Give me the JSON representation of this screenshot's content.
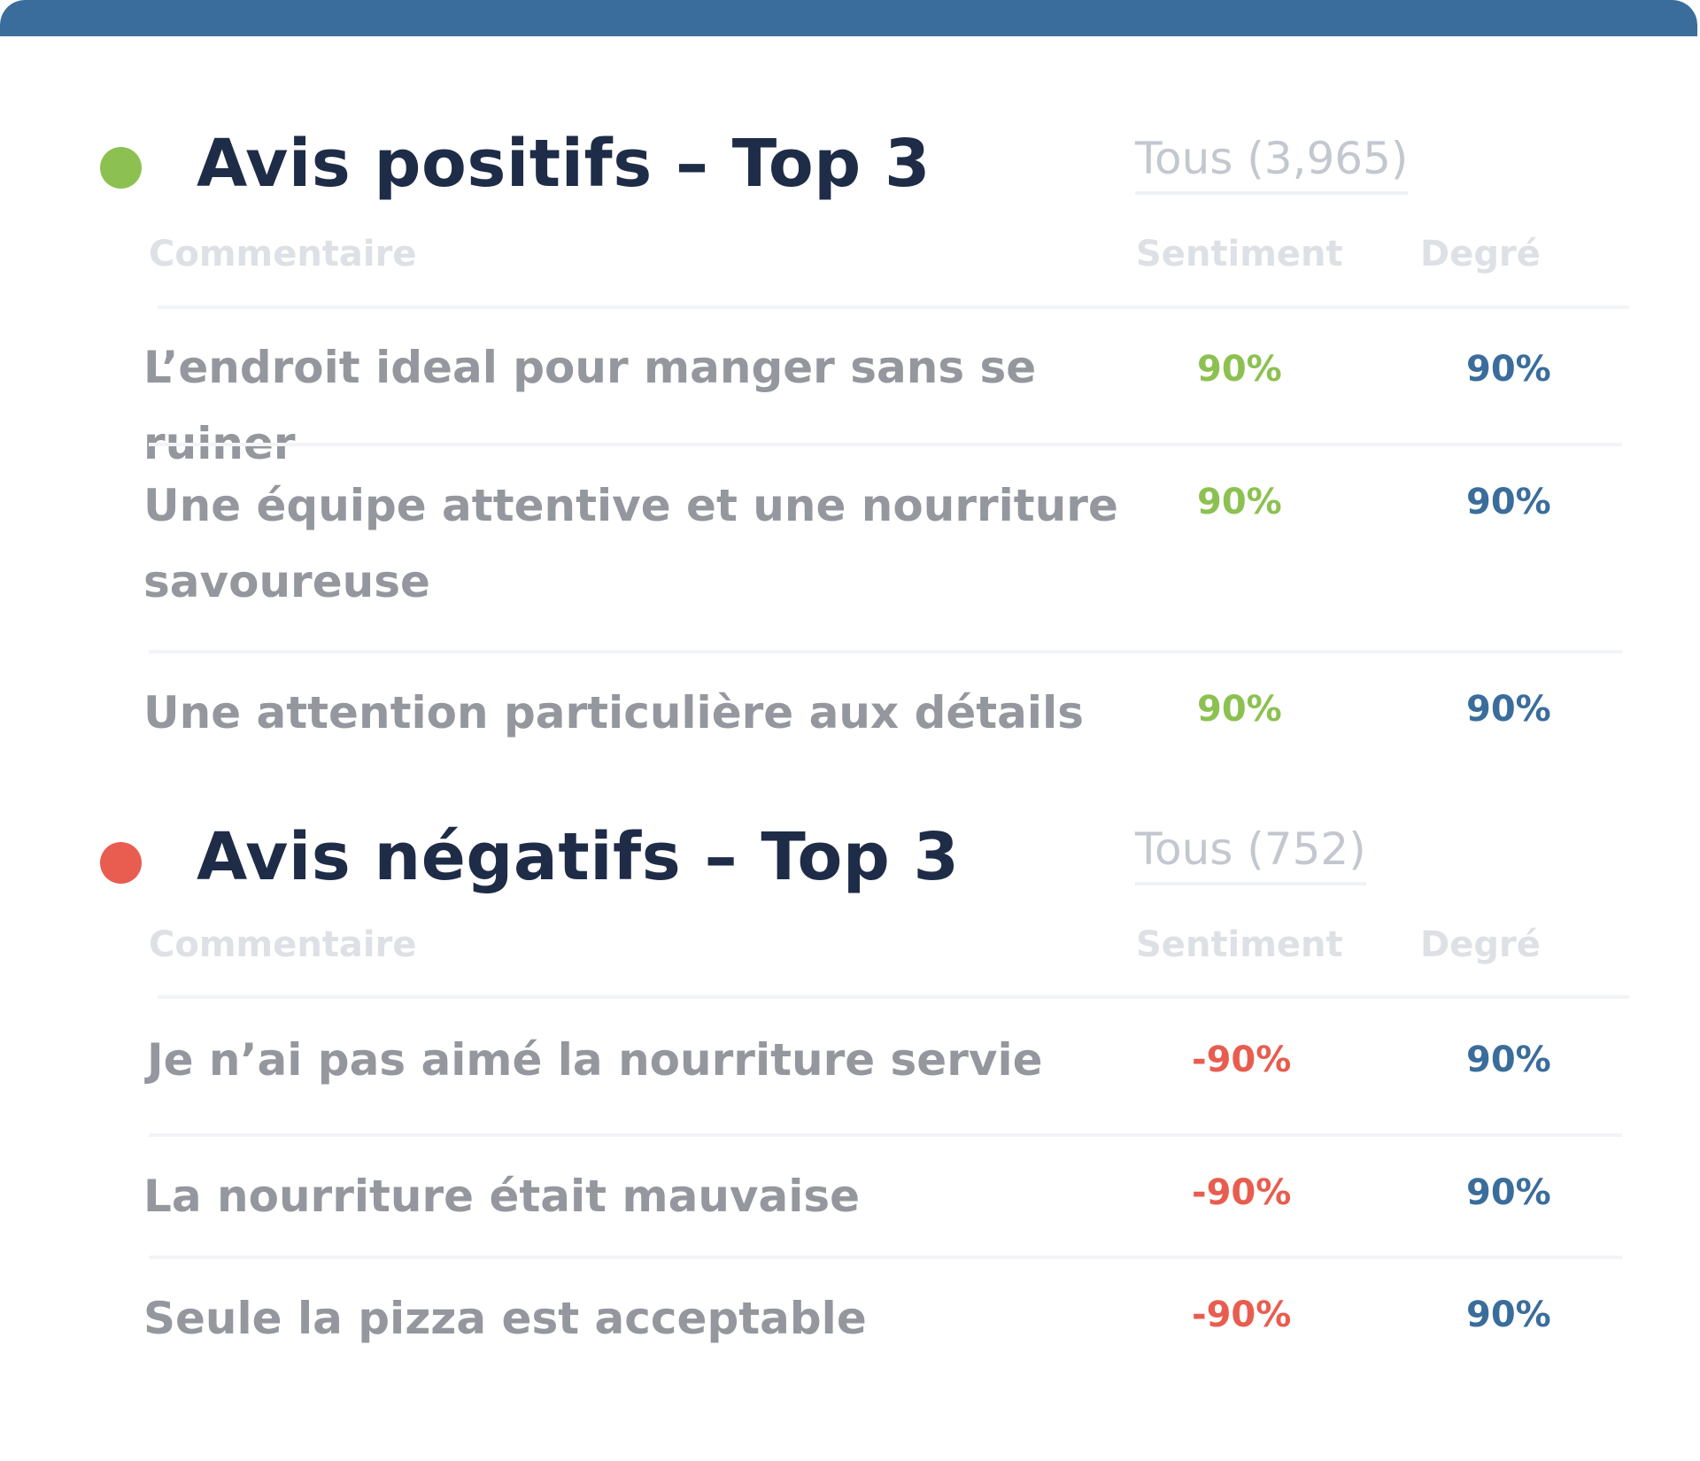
{
  "colors": {
    "accent": "#3a6d9c",
    "positive": "#8cc151",
    "negative": "#e85d4f",
    "degree": "#3a6d9c",
    "title": "#1e2c47",
    "comment_text": "#94979d"
  },
  "positive": {
    "indicator_color": "#8cc151",
    "title": "Avis positifs – Top 3",
    "filter_label": "Tous (3,965)",
    "headers": {
      "comment": "Commentaire",
      "sentiment": "Sentiment",
      "degree": "Degré"
    },
    "rows": [
      {
        "comment": "L’endroit ideal pour manger sans se ruiner",
        "sentiment": "90%",
        "degree": "90%"
      },
      {
        "comment": "Une équipe attentive et une nourriture savoureuse",
        "sentiment": "90%",
        "degree": "90%"
      },
      {
        "comment": "Une attention particulière aux détails",
        "sentiment": "90%",
        "degree": "90%"
      }
    ]
  },
  "negative": {
    "indicator_color": "#e85d4f",
    "title": "Avis négatifs – Top 3",
    "filter_label": "Tous (752)",
    "headers": {
      "comment": "Commentaire",
      "sentiment": "Sentiment",
      "degree": "Degré"
    },
    "rows": [
      {
        "comment": "Je n’ai pas aimé la nourriture servie",
        "sentiment": "-90%",
        "degree": "90%"
      },
      {
        "comment": "La nourriture était mauvaise",
        "sentiment": "-90%",
        "degree": "90%"
      },
      {
        "comment": "Seule la pizza est acceptable",
        "sentiment": "-90%",
        "degree": "90%"
      }
    ]
  }
}
